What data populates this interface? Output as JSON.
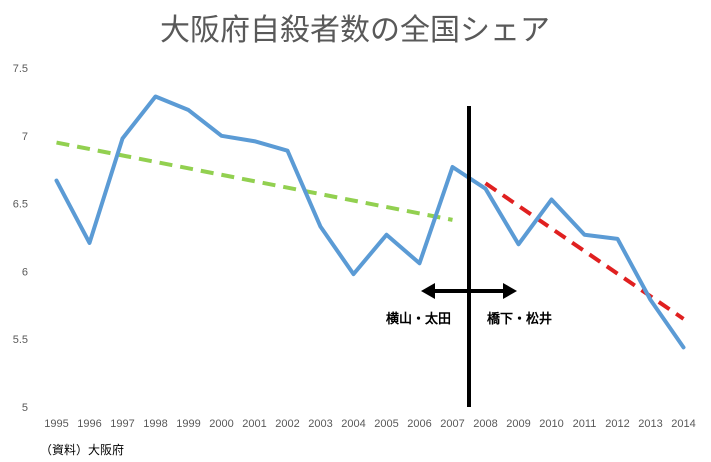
{
  "chart_data": {
    "type": "line",
    "title": "大阪府自殺者数の全国シェア",
    "xlabel": "",
    "ylabel": "",
    "ylim": [
      5,
      7.5
    ],
    "yticks": [
      "5",
      "5.5",
      "6",
      "6.5",
      "7",
      "7.5"
    ],
    "x": [
      "1995",
      "1996",
      "1997",
      "1998",
      "1999",
      "2000",
      "2001",
      "2002",
      "2003",
      "2004",
      "2005",
      "2006",
      "2007",
      "2008",
      "2009",
      "2010",
      "2011",
      "2012",
      "2013",
      "2014"
    ],
    "series": [
      {
        "values": [
          6.67,
          6.21,
          6.98,
          7.29,
          7.19,
          7.0,
          6.96,
          6.89,
          6.33,
          5.98,
          6.27,
          6.06,
          6.77,
          6.61,
          6.2,
          6.53,
          6.27,
          6.24,
          5.79,
          5.44
        ],
        "color": "#5b9bd5"
      }
    ],
    "trendlines": [
      {
        "from_x": "1995",
        "from_y": 6.95,
        "to_x": "2007",
        "to_y": 6.38,
        "color": "#92d050",
        "style": "dashed"
      },
      {
        "from_x": "2008",
        "from_y": 6.65,
        "to_x": "2014",
        "to_y": 5.65,
        "color": "#e02020",
        "style": "dashed"
      }
    ],
    "divider_after": "2007",
    "annotations": [
      {
        "text": "横山・太田",
        "side": "left"
      },
      {
        "text": "橋下・松井",
        "side": "right"
      }
    ],
    "grid": false,
    "legend": "none"
  },
  "source_note": "（資料）大阪府"
}
